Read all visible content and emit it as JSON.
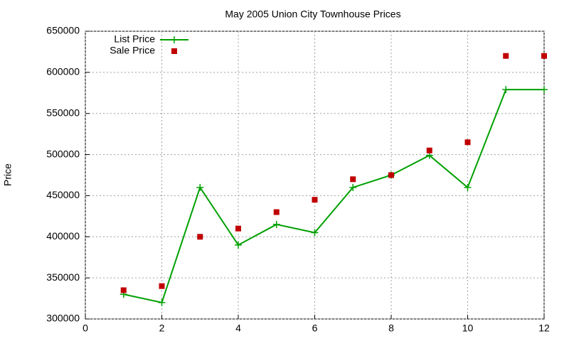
{
  "chart_data": {
    "type": "line",
    "title": "May 2005 Union City Townhouse Prices",
    "y_label": "Price",
    "x": [
      1,
      2,
      3,
      4,
      5,
      6,
      7,
      8,
      9,
      10,
      11,
      12
    ],
    "series": [
      {
        "name": "List Price",
        "color": "#00a000",
        "style": "linespoints",
        "values": [
          330000,
          320000,
          460000,
          390000,
          415000,
          405000,
          460000,
          475000,
          499000,
          460000,
          579000,
          579000
        ]
      },
      {
        "name": "Sale Price",
        "color": "#c00000",
        "style": "points",
        "values": [
          335000,
          340000,
          400000,
          410000,
          430000,
          445000,
          470000,
          475000,
          505000,
          515000,
          620000,
          620000
        ]
      }
    ],
    "xlim": [
      0,
      12
    ],
    "xticks": [
      0,
      2,
      4,
      6,
      8,
      10,
      12
    ],
    "ylim": [
      300000,
      650000
    ],
    "yticks": [
      300000,
      350000,
      400000,
      450000,
      500000,
      550000,
      600000,
      650000
    ],
    "grid": true,
    "legend": "top-left"
  }
}
